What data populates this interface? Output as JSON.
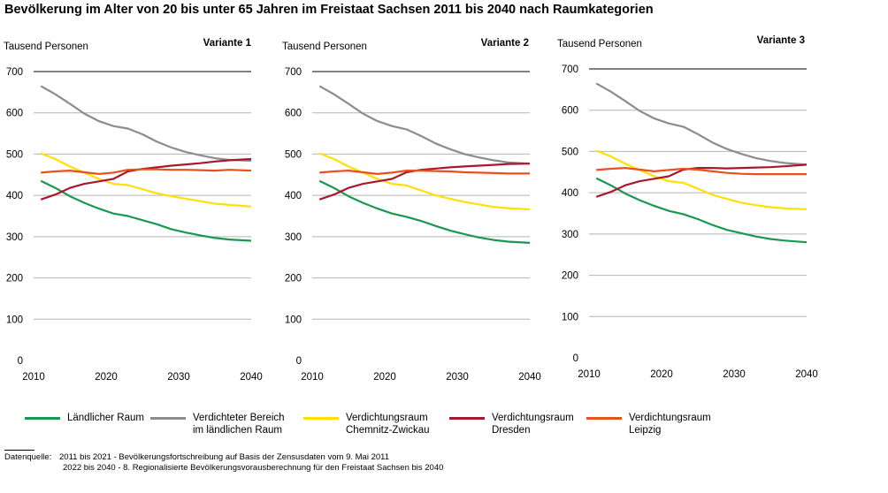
{
  "title": "Bevölkerung im Alter von 20 bis unter 65 Jahren im Freistaat Sachsen 2011 bis 2040 nach Raumkategorien",
  "source": {
    "label": "Datenquelle:",
    "line1": "2011 bis 2021 - Bevölkerungsfortschreibung auf Basis der Zensusdaten vom 9. Mai 2011",
    "line2": "2022 bis 2040 - 8. Regionalisierte Bevölkerungsvorausberechnung für den Freistaat Sachsen bis 2040"
  },
  "legend": [
    {
      "label": "Ländlicher Raum",
      "color": "#1a9850"
    },
    {
      "label": "Verdichteter Bereich\nim ländlichen Raum",
      "color": "#8c8c8c"
    },
    {
      "label": "Verdichtungsraum\nChemnitz-Zwickau",
      "color": "#ffe000"
    },
    {
      "label": "Verdichtungsraum\nDresden",
      "color": "#a8182c"
    },
    {
      "label": "Verdichtungsraum\nLeipzig",
      "color": "#e8501e"
    }
  ],
  "chart_data": [
    {
      "type": "line",
      "title": "Variante 1",
      "ylabel": "Tausend Personen",
      "xlabel": "",
      "xlim": [
        2010,
        2040
      ],
      "ylim": [
        0,
        700
      ],
      "xticks": [
        "2010",
        "2020",
        "2030",
        "2040"
      ],
      "yticks": [
        "0",
        "100",
        "200",
        "300",
        "400",
        "500",
        "600",
        "700"
      ],
      "x": [
        2011,
        2013,
        2015,
        2017,
        2019,
        2021,
        2023,
        2025,
        2027,
        2029,
        2031,
        2033,
        2035,
        2037,
        2040
      ],
      "series": [
        {
          "name": "Ländlicher Raum",
          "values": [
            435,
            418,
            398,
            382,
            368,
            356,
            350,
            340,
            330,
            318,
            310,
            303,
            297,
            293,
            290
          ]
        },
        {
          "name": "Verdichteter Bereich im ländlichen Raum",
          "values": [
            665,
            645,
            622,
            598,
            580,
            568,
            562,
            548,
            530,
            516,
            505,
            497,
            490,
            486,
            484
          ]
        },
        {
          "name": "Verdichtungsraum Chemnitz-Zwickau",
          "values": [
            502,
            488,
            470,
            455,
            440,
            428,
            425,
            415,
            405,
            398,
            392,
            386,
            380,
            377,
            373
          ]
        },
        {
          "name": "Verdichtungsraum Dresden",
          "values": [
            390,
            402,
            418,
            428,
            434,
            440,
            458,
            464,
            468,
            472,
            475,
            478,
            482,
            485,
            488
          ]
        },
        {
          "name": "Verdichtungsraum Leipzig",
          "values": [
            455,
            458,
            460,
            456,
            452,
            455,
            462,
            463,
            463,
            462,
            462,
            461,
            460,
            462,
            460
          ]
        }
      ]
    },
    {
      "type": "line",
      "title": "Variante 2",
      "ylabel": "Tausend Personen",
      "xlabel": "",
      "xlim": [
        2010,
        2040
      ],
      "ylim": [
        0,
        700
      ],
      "xticks": [
        "2010",
        "2020",
        "2030",
        "2040"
      ],
      "yticks": [
        "0",
        "100",
        "200",
        "300",
        "400",
        "500",
        "600",
        "700"
      ],
      "x": [
        2011,
        2013,
        2015,
        2017,
        2019,
        2021,
        2023,
        2025,
        2027,
        2029,
        2031,
        2033,
        2035,
        2037,
        2040
      ],
      "series": [
        {
          "name": "Ländlicher Raum",
          "values": [
            435,
            418,
            398,
            382,
            368,
            356,
            348,
            338,
            326,
            315,
            306,
            298,
            292,
            288,
            285
          ]
        },
        {
          "name": "Verdichteter Bereich im ländlichen Raum",
          "values": [
            665,
            645,
            622,
            598,
            580,
            568,
            560,
            544,
            526,
            512,
            500,
            492,
            485,
            480,
            477
          ]
        },
        {
          "name": "Verdichtungsraum Chemnitz-Zwickau",
          "values": [
            502,
            488,
            470,
            455,
            440,
            428,
            424,
            412,
            400,
            392,
            384,
            378,
            372,
            369,
            366
          ]
        },
        {
          "name": "Verdichtungsraum Dresden",
          "values": [
            390,
            402,
            418,
            428,
            434,
            440,
            456,
            462,
            465,
            468,
            470,
            472,
            474,
            476,
            477
          ]
        },
        {
          "name": "Verdichtungsraum Leipzig",
          "values": [
            455,
            458,
            460,
            456,
            452,
            455,
            460,
            460,
            459,
            458,
            456,
            455,
            454,
            453,
            453
          ]
        }
      ]
    },
    {
      "type": "line",
      "title": "Variante 3",
      "ylabel": "Tausend Personen",
      "xlabel": "",
      "xlim": [
        2010,
        2040
      ],
      "ylim": [
        0,
        700
      ],
      "xticks": [
        "2010",
        "2020",
        "2030",
        "2040"
      ],
      "yticks": [
        "0",
        "100",
        "200",
        "300",
        "400",
        "500",
        "600",
        "700"
      ],
      "x": [
        2011,
        2013,
        2015,
        2017,
        2019,
        2021,
        2023,
        2025,
        2027,
        2029,
        2031,
        2033,
        2035,
        2037,
        2040
      ],
      "series": [
        {
          "name": "Ländlicher Raum",
          "values": [
            435,
            418,
            398,
            382,
            368,
            356,
            348,
            336,
            322,
            310,
            302,
            294,
            288,
            284,
            280
          ]
        },
        {
          "name": "Verdichteter Bereich im ländlichen Raum",
          "values": [
            665,
            645,
            622,
            598,
            580,
            568,
            560,
            542,
            522,
            506,
            494,
            484,
            477,
            472,
            468
          ]
        },
        {
          "name": "Verdichtungsraum Chemnitz-Zwickau",
          "values": [
            502,
            488,
            470,
            455,
            440,
            428,
            424,
            410,
            395,
            385,
            376,
            370,
            365,
            362,
            360
          ]
        },
        {
          "name": "Verdichtungsraum Dresden",
          "values": [
            390,
            402,
            418,
            428,
            434,
            440,
            456,
            460,
            460,
            459,
            460,
            461,
            462,
            464,
            468
          ]
        },
        {
          "name": "Verdichtungsraum Leipzig",
          "values": [
            455,
            458,
            460,
            456,
            452,
            455,
            458,
            456,
            452,
            448,
            446,
            445,
            445,
            445,
            445
          ]
        }
      ]
    }
  ]
}
